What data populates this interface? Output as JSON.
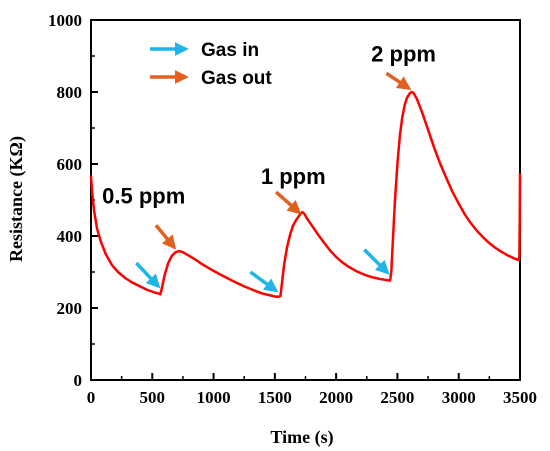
{
  "chart_data": {
    "type": "line",
    "title": "",
    "xlabel": "Time (s)",
    "ylabel": "Resistance (KΩ)",
    "xlim": [
      0,
      3500
    ],
    "ylim": [
      0,
      1000
    ],
    "xticks": [
      0,
      500,
      1000,
      1500,
      2000,
      2500,
      3000,
      3500
    ],
    "yticks": [
      0,
      200,
      400,
      600,
      800,
      1000
    ],
    "grid": false,
    "legend": {
      "placement": "top-left",
      "entries": [
        {
          "label": "Gas in",
          "color": "#1fb5e8",
          "marker": "arrow"
        },
        {
          "label": "Gas out",
          "color": "#e2601e",
          "marker": "arrow"
        }
      ]
    },
    "series": [
      {
        "color": "#ff0000",
        "points": [
          [
            0,
            565
          ],
          [
            10,
            520
          ],
          [
            25,
            470
          ],
          [
            50,
            420
          ],
          [
            80,
            385
          ],
          [
            120,
            350
          ],
          [
            170,
            320
          ],
          [
            220,
            300
          ],
          [
            280,
            283
          ],
          [
            340,
            270
          ],
          [
            400,
            260
          ],
          [
            460,
            250
          ],
          [
            520,
            243
          ],
          [
            555,
            240
          ],
          [
            565,
            238
          ],
          [
            575,
            250
          ],
          [
            600,
            290
          ],
          [
            630,
            325
          ],
          [
            660,
            345
          ],
          [
            690,
            355
          ],
          [
            720,
            358
          ],
          [
            750,
            355
          ],
          [
            800,
            345
          ],
          [
            850,
            335
          ],
          [
            900,
            323
          ],
          [
            950,
            313
          ],
          [
            1000,
            303
          ],
          [
            1050,
            294
          ],
          [
            1100,
            285
          ],
          [
            1150,
            276
          ],
          [
            1200,
            268
          ],
          [
            1250,
            260
          ],
          [
            1300,
            253
          ],
          [
            1350,
            246
          ],
          [
            1400,
            240
          ],
          [
            1450,
            236
          ],
          [
            1500,
            232
          ],
          [
            1530,
            231
          ],
          [
            1545,
            233
          ],
          [
            1555,
            260
          ],
          [
            1575,
            320
          ],
          [
            1600,
            370
          ],
          [
            1625,
            405
          ],
          [
            1650,
            430
          ],
          [
            1675,
            445
          ],
          [
            1695,
            455
          ],
          [
            1710,
            462
          ],
          [
            1725,
            466
          ],
          [
            1740,
            462
          ],
          [
            1760,
            450
          ],
          [
            1800,
            430
          ],
          [
            1850,
            405
          ],
          [
            1900,
            382
          ],
          [
            1950,
            360
          ],
          [
            2000,
            342
          ],
          [
            2050,
            327
          ],
          [
            2100,
            315
          ],
          [
            2150,
            305
          ],
          [
            2200,
            297
          ],
          [
            2250,
            290
          ],
          [
            2300,
            285
          ],
          [
            2350,
            281
          ],
          [
            2400,
            278
          ],
          [
            2440,
            276
          ],
          [
            2450,
            300
          ],
          [
            2465,
            400
          ],
          [
            2480,
            500
          ],
          [
            2500,
            600
          ],
          [
            2520,
            680
          ],
          [
            2540,
            730
          ],
          [
            2560,
            765
          ],
          [
            2580,
            785
          ],
          [
            2600,
            796
          ],
          [
            2615,
            800
          ],
          [
            2630,
            798
          ],
          [
            2660,
            780
          ],
          [
            2700,
            745
          ],
          [
            2750,
            695
          ],
          [
            2800,
            645
          ],
          [
            2850,
            600
          ],
          [
            2900,
            560
          ],
          [
            2950,
            522
          ],
          [
            3000,
            490
          ],
          [
            3050,
            460
          ],
          [
            3100,
            435
          ],
          [
            3150,
            414
          ],
          [
            3200,
            396
          ],
          [
            3250,
            380
          ],
          [
            3300,
            367
          ],
          [
            3350,
            356
          ],
          [
            3400,
            346
          ],
          [
            3450,
            338
          ],
          [
            3490,
            333
          ],
          [
            3495,
            345
          ],
          [
            3498,
            460
          ],
          [
            3500,
            570
          ]
        ]
      }
    ],
    "annotations": [
      {
        "text": "0.5 ppm",
        "x": 430,
        "y": 490
      },
      {
        "text": "1 ppm",
        "x": 1650,
        "y": 545
      },
      {
        "text": "2 ppm",
        "x": 2550,
        "y": 885
      }
    ],
    "gas_in_arrows": [
      {
        "x_from": 370,
        "y_from": 325,
        "x_to": 550,
        "y_to": 260
      },
      {
        "x_from": 1300,
        "y_from": 300,
        "x_to": 1510,
        "y_to": 248
      },
      {
        "x_from": 2230,
        "y_from": 362,
        "x_to": 2420,
        "y_to": 298
      }
    ],
    "gas_out_arrows": [
      {
        "x_from": 530,
        "y_from": 430,
        "x_to": 680,
        "y_to": 368
      },
      {
        "x_from": 1510,
        "y_from": 522,
        "x_to": 1700,
        "y_to": 465
      },
      {
        "x_from": 2410,
        "y_from": 852,
        "x_to": 2595,
        "y_to": 810
      }
    ]
  }
}
